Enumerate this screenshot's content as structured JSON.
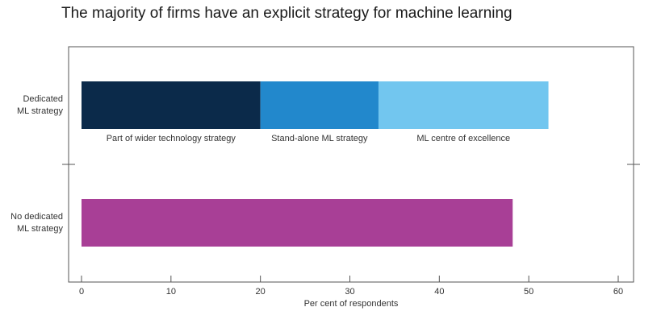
{
  "chart_data": {
    "type": "bar",
    "orientation": "horizontal",
    "stacked": true,
    "title": "The majority of firms have an explicit strategy for machine learning",
    "xlabel": "Per cent of respondents",
    "ylabel": "",
    "xlim": [
      0,
      60
    ],
    "x_ticks": [
      "0",
      "10",
      "20",
      "30",
      "40",
      "50",
      "60"
    ],
    "categories": [
      "Dedicated ML strategy",
      "No dedicated ML strategy"
    ],
    "category_lines": [
      [
        "Dedicated",
        "ML strategy"
      ],
      [
        "No dedicated",
        "ML strategy"
      ]
    ],
    "segments": [
      {
        "row": 0,
        "name": "Part of wider technology strategy",
        "value": 20,
        "color": "#0b2a4a"
      },
      {
        "row": 0,
        "name": "Stand-alone ML strategy",
        "value": 13.2,
        "color": "#2288cc"
      },
      {
        "row": 0,
        "name": "ML centre of excellence",
        "value": 19,
        "color": "#72c6ef"
      },
      {
        "row": 1,
        "name": "",
        "value": 48.2,
        "color": "#a83f96"
      }
    ],
    "grid": false,
    "legend": "labels below bars"
  }
}
